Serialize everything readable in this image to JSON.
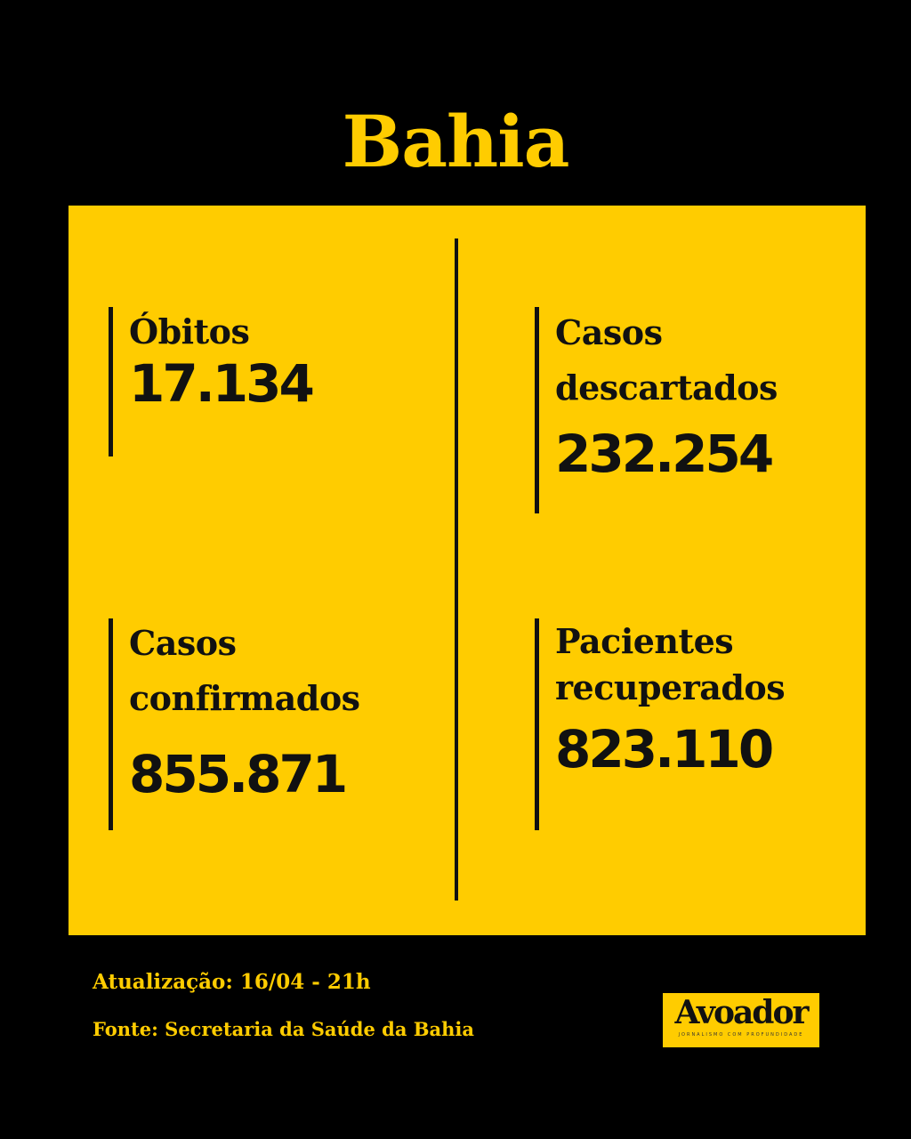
{
  "title": "Bahia",
  "stats": [
    {
      "label_lines": [
        "Óbitos"
      ],
      "value": "17.134"
    },
    {
      "label_lines": [
        "Casos",
        "descartados"
      ],
      "value": "232.254"
    },
    {
      "label_lines": [
        "Casos",
        "confirmados"
      ],
      "value": "855.871"
    },
    {
      "label_lines": [
        "Pacientes",
        "recuperados"
      ],
      "value": "823.110"
    }
  ],
  "footer": {
    "update": "Atualização: 16/04 - 21h",
    "source": "Fonte: Secretaria da Saúde da Bahia"
  },
  "logo": {
    "name": "Avoador",
    "tagline": "JORNALISMO COM PROFUNDIDADE"
  },
  "colors": {
    "accent": "#FFCC00",
    "background": "#000000",
    "text": "#111111"
  }
}
